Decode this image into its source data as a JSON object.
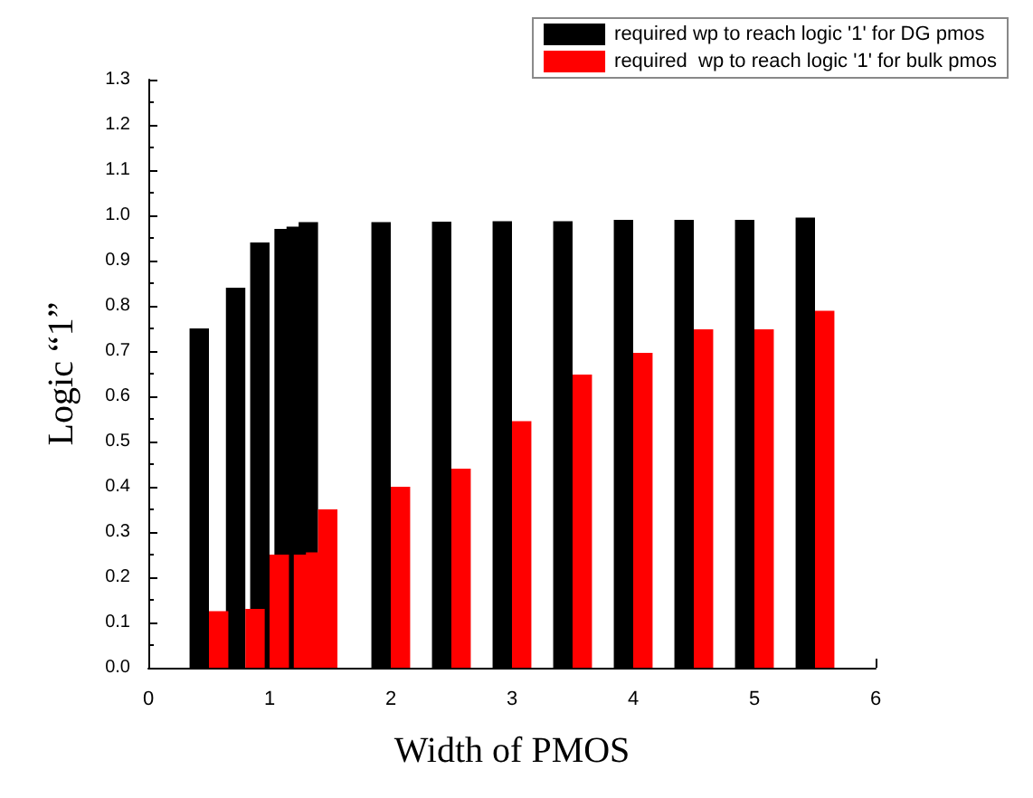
{
  "chart_data": {
    "type": "bar",
    "xlabel": "Width of PMOS",
    "ylabel": "Logic “1”",
    "series": [
      {
        "name": "required wp to reach logic '1' for DG pmos",
        "color": "#000000",
        "x": [
          0.42,
          0.72,
          0.92,
          1.12,
          1.22,
          1.32,
          1.92,
          2.42,
          2.92,
          3.42,
          3.92,
          4.42,
          4.92,
          5.42
        ],
        "values": [
          0.75,
          0.84,
          0.94,
          0.97,
          0.975,
          0.985,
          0.985,
          0.986,
          0.987,
          0.987,
          0.99,
          0.99,
          0.99,
          0.995
        ]
      },
      {
        "name": "required  wp to reach logic '1' for bulk pmos",
        "color": "#ff0000",
        "x": [
          0.58,
          0.88,
          1.08,
          1.28,
          1.38,
          1.48,
          2.08,
          2.58,
          3.08,
          3.58,
          4.08,
          4.58,
          5.08,
          5.58
        ],
        "values": [
          0.125,
          0.13,
          0.25,
          0.25,
          0.255,
          0.35,
          0.4,
          0.44,
          0.545,
          0.648,
          0.696,
          0.748,
          0.748,
          0.789
        ]
      }
    ],
    "xlim": [
      0,
      6
    ],
    "xticks": [
      0,
      1,
      2,
      3,
      4,
      5,
      6
    ],
    "ylim": [
      0,
      1.3
    ],
    "yticks": [
      {
        "value": 0,
        "label": "0.0"
      },
      {
        "value": 0.1,
        "label": "0.1"
      },
      {
        "value": 0.2,
        "label": "0.2"
      },
      {
        "value": 0.3,
        "label": "0.3"
      },
      {
        "value": 0.4,
        "label": "0.4"
      },
      {
        "value": 0.5,
        "label": "0.5"
      },
      {
        "value": 0.6,
        "label": "0.6"
      },
      {
        "value": 0.7,
        "label": "0.7"
      },
      {
        "value": 0.8,
        "label": "0.8"
      },
      {
        "value": 0.9,
        "label": "0.9"
      },
      {
        "value": 1.0,
        "label": "1.0"
      },
      {
        "value": 1.1,
        "label": "1.1"
      },
      {
        "value": 1.2,
        "label": "1.2"
      },
      {
        "value": 1.3,
        "label": "1.3"
      }
    ],
    "legend": "top right",
    "grid": false
  }
}
